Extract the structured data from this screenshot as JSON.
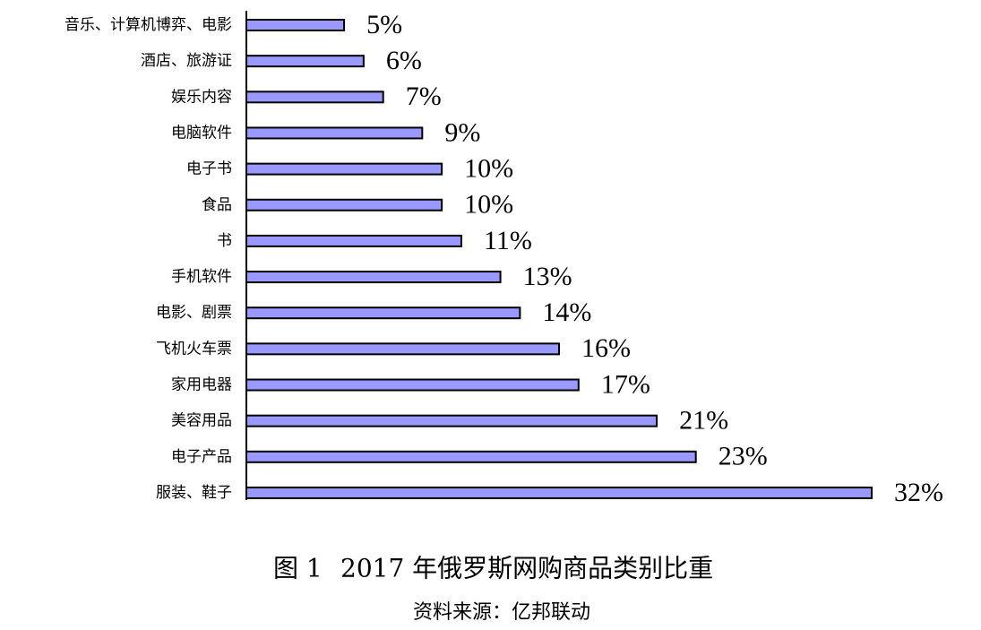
{
  "chart_data": {
    "type": "hbar",
    "figure_label": "图 1",
    "title": "2017 年俄罗斯网购商品类别比重",
    "source": "资料来源：亿邦联动",
    "categories": [
      "音乐、计算机博弈、电影",
      "酒店、旅游证",
      "娱乐内容",
      "电脑软件",
      "电子书",
      "食品",
      "书",
      "手机软件",
      "电影、剧票",
      "飞机火车票",
      "家用电器",
      "美容用品",
      "电子产品",
      "服装、鞋子"
    ],
    "values": [
      5,
      6,
      7,
      9,
      10,
      10,
      11,
      13,
      14,
      16,
      17,
      21,
      23,
      32
    ],
    "value_labels": [
      "5%",
      "6%",
      "7%",
      "9%",
      "10%",
      "10%",
      "11%",
      "13%",
      "14%",
      "16%",
      "17%",
      "21%",
      "23%",
      "32%"
    ],
    "color": "#9999ff",
    "xlim": [
      0,
      32
    ]
  }
}
